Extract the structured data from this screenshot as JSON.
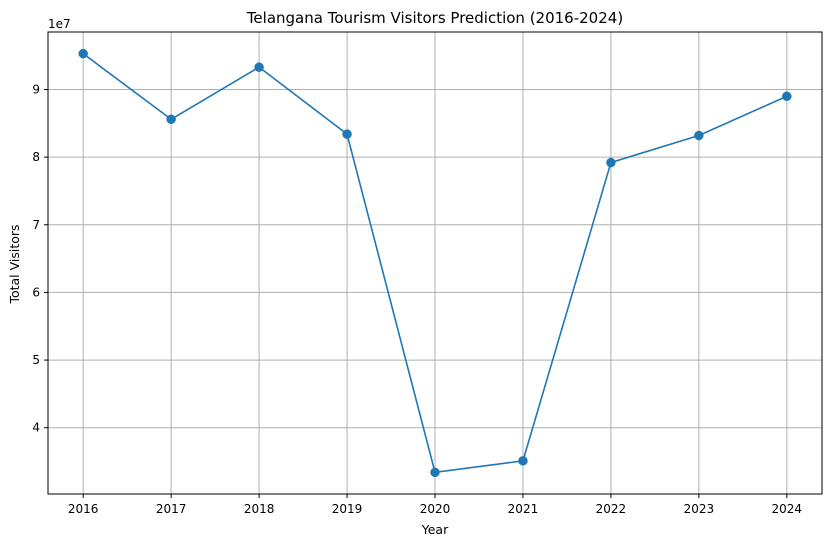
{
  "chart_data": {
    "type": "line",
    "title": "Telangana Tourism Visitors Prediction (2016-2024)",
    "xlabel": "Year",
    "ylabel": "Total Visitors",
    "y_offset_label": "1e7",
    "x": [
      2016,
      2017,
      2018,
      2019,
      2020,
      2021,
      2022,
      2023,
      2024
    ],
    "series": [
      {
        "values": [
          95300000,
          85600000,
          93300000,
          83400000,
          33400000,
          35100000,
          79200000,
          83200000,
          89000000
        ],
        "color": "#1f77b4",
        "marker": "circle"
      }
    ],
    "xlim": [
      2015.6,
      2024.4
    ],
    "ylim": [
      30200000,
      98500000
    ],
    "y_ticks": [
      40000000,
      50000000,
      60000000,
      70000000,
      80000000,
      90000000
    ],
    "y_tick_labels": [
      "4",
      "5",
      "6",
      "7",
      "8",
      "9"
    ],
    "x_tick_labels": [
      "2016",
      "2017",
      "2018",
      "2019",
      "2020",
      "2021",
      "2022",
      "2023",
      "2024"
    ],
    "grid": true,
    "grid_color": "#b0b0b0",
    "axis_color": "#000000"
  }
}
